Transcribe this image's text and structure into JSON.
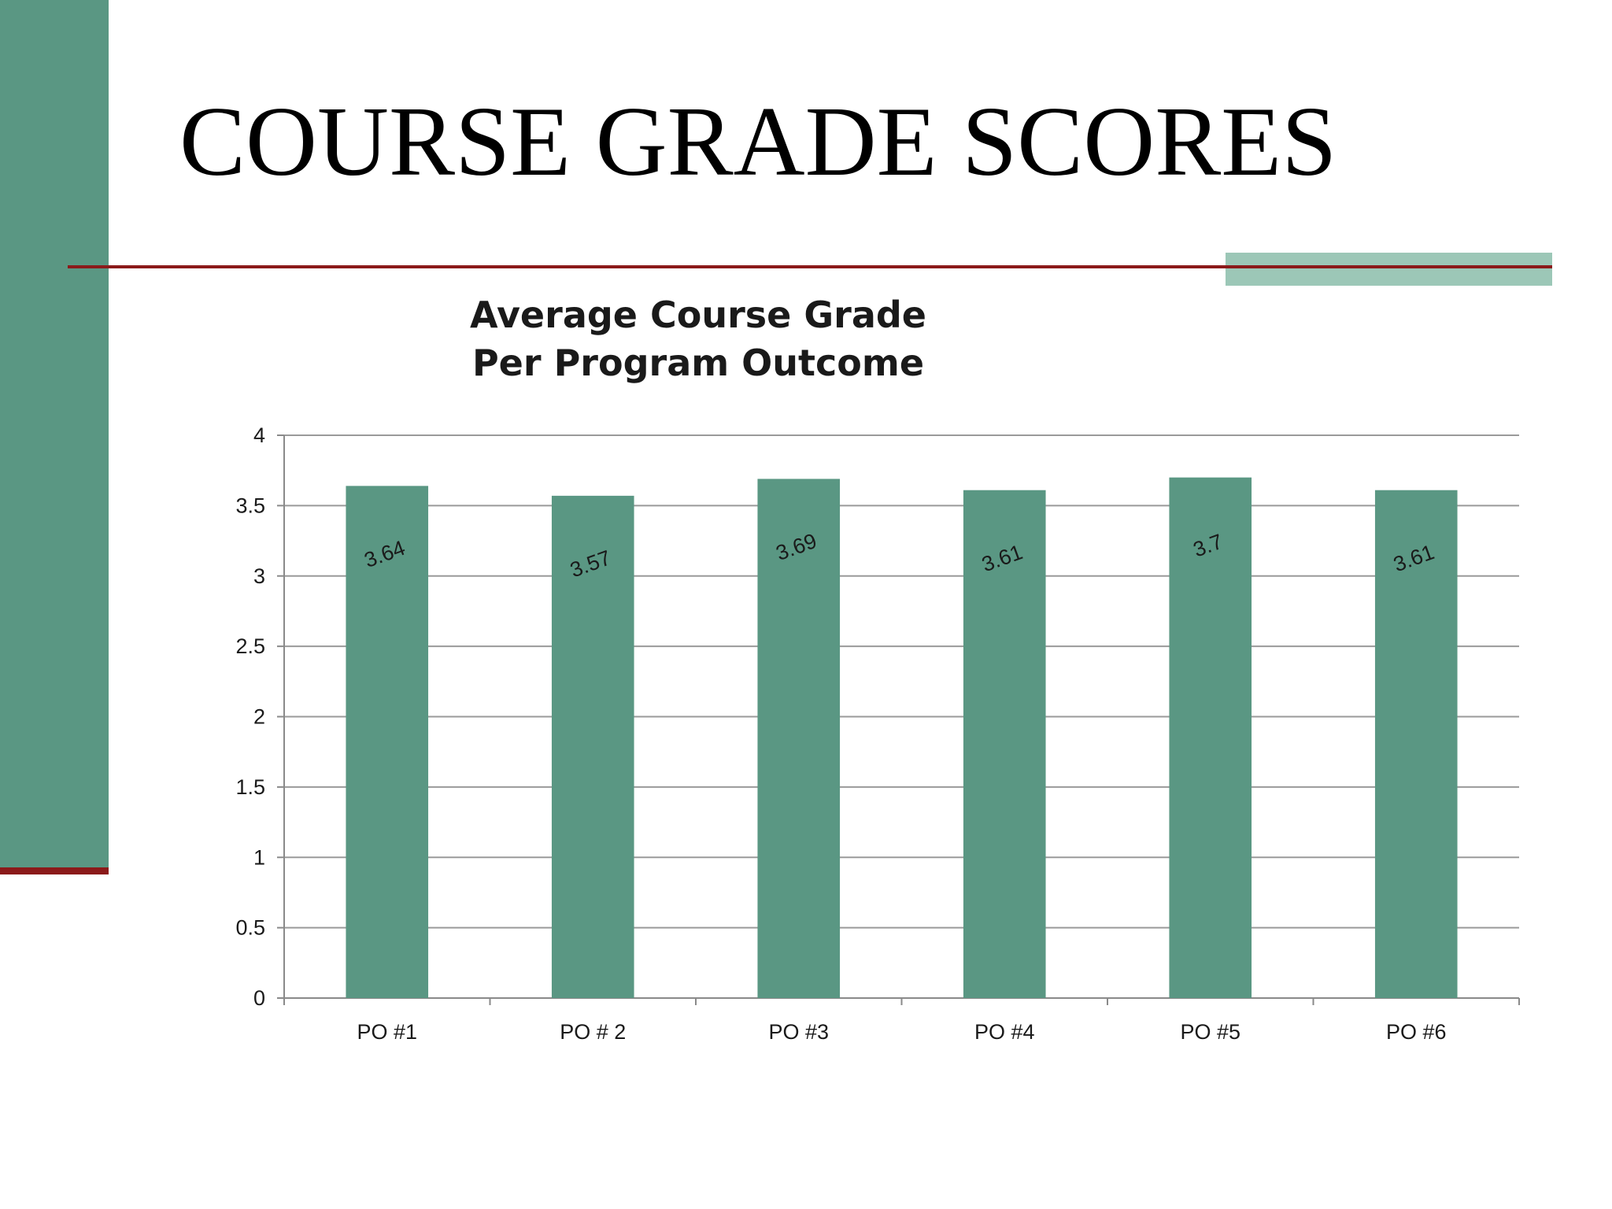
{
  "slide": {
    "title": "COURSE GRADE SCORES",
    "colors": {
      "sidebar": "#5a9783",
      "accent_rule": "#8b1a1a",
      "accent_block": "#9cc7b7"
    }
  },
  "chart_data": {
    "type": "bar",
    "title_lines": [
      "Average Course Grade",
      "Per Program Outcome"
    ],
    "categories": [
      "PO #1",
      "PO # 2",
      "PO #3",
      "PO #4",
      "PO #5",
      "PO #6"
    ],
    "values": [
      3.64,
      3.57,
      3.69,
      3.61,
      3.7,
      3.61
    ],
    "data_labels": [
      "3.64",
      "3.57",
      "3.69",
      "3.61",
      "3.7",
      "3.61"
    ],
    "xlabel": "",
    "ylabel": "",
    "ylim": [
      0,
      4
    ],
    "yticks": [
      "0",
      "0.5",
      "1",
      "1.5",
      "2",
      "2.5",
      "3",
      "3.5",
      "4"
    ],
    "grid": true,
    "legend": "none",
    "bar_color": "#5a9783"
  }
}
